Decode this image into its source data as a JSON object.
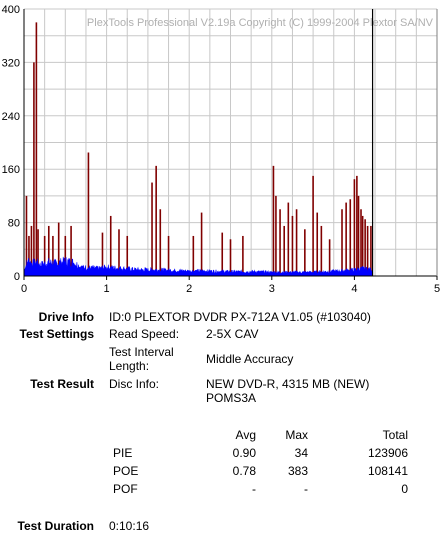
{
  "chart_data": {
    "type": "bar",
    "title": "PlexTools Professional V2.19a Copyright (C) 1999-2004 Plextor SA/NV",
    "xlim": [
      0,
      5
    ],
    "ylim": [
      0,
      400
    ],
    "x_ticks": [
      "0",
      "1",
      "2",
      "3",
      "4",
      "5"
    ],
    "y_ticks": [
      "0",
      "80",
      "160",
      "240",
      "320",
      "400"
    ],
    "grid": true,
    "colors": {
      "pie": "#0000ff",
      "poe": "#800000",
      "marker": "#000000"
    },
    "end_marker_x": 4.22,
    "series": [
      {
        "name": "PIE",
        "color": "#0000ff",
        "profile": [
          [
            0.0,
            10
          ],
          [
            0.05,
            25
          ],
          [
            0.1,
            20
          ],
          [
            0.15,
            22
          ],
          [
            0.2,
            18
          ],
          [
            0.3,
            22
          ],
          [
            0.4,
            20
          ],
          [
            0.5,
            24
          ],
          [
            0.6,
            22
          ],
          [
            0.7,
            14
          ],
          [
            0.9,
            12
          ],
          [
            1.0,
            14
          ],
          [
            1.2,
            12
          ],
          [
            1.4,
            10
          ],
          [
            1.6,
            10
          ],
          [
            1.8,
            9
          ],
          [
            2.0,
            8
          ],
          [
            2.2,
            8
          ],
          [
            2.5,
            7
          ],
          [
            2.8,
            7
          ],
          [
            3.0,
            6
          ],
          [
            3.2,
            6
          ],
          [
            3.5,
            6
          ],
          [
            3.8,
            8
          ],
          [
            4.0,
            10
          ],
          [
            4.1,
            12
          ],
          [
            4.22,
            10
          ]
        ]
      },
      {
        "name": "POE",
        "color": "#800000",
        "spikes": [
          [
            0.03,
            120
          ],
          [
            0.06,
            60
          ],
          [
            0.09,
            75
          ],
          [
            0.12,
            320
          ],
          [
            0.15,
            380
          ],
          [
            0.17,
            70
          ],
          [
            0.25,
            60
          ],
          [
            0.3,
            75
          ],
          [
            0.35,
            60
          ],
          [
            0.42,
            80
          ],
          [
            0.5,
            60
          ],
          [
            0.57,
            75
          ],
          [
            0.78,
            185
          ],
          [
            0.95,
            65
          ],
          [
            1.05,
            90
          ],
          [
            1.15,
            70
          ],
          [
            1.25,
            60
          ],
          [
            1.55,
            140
          ],
          [
            1.6,
            165
          ],
          [
            1.65,
            100
          ],
          [
            1.75,
            60
          ],
          [
            2.05,
            60
          ],
          [
            2.15,
            95
          ],
          [
            2.4,
            65
          ],
          [
            2.5,
            55
          ],
          [
            2.65,
            60
          ],
          [
            3.02,
            165
          ],
          [
            3.05,
            120
          ],
          [
            3.1,
            100
          ],
          [
            3.15,
            75
          ],
          [
            3.2,
            110
          ],
          [
            3.25,
            90
          ],
          [
            3.3,
            100
          ],
          [
            3.4,
            70
          ],
          [
            3.5,
            150
          ],
          [
            3.55,
            95
          ],
          [
            3.6,
            75
          ],
          [
            3.7,
            55
          ],
          [
            3.85,
            100
          ],
          [
            3.9,
            110
          ],
          [
            3.95,
            115
          ],
          [
            4.0,
            145
          ],
          [
            4.03,
            150
          ],
          [
            4.05,
            120
          ],
          [
            4.08,
            100
          ],
          [
            4.1,
            90
          ],
          [
            4.13,
            85
          ],
          [
            4.16,
            75
          ],
          [
            4.2,
            75
          ]
        ]
      }
    ]
  },
  "info": {
    "drive_info_label": "Drive Info",
    "drive_info_value": "ID:0 PLEXTOR DVDR PX-712A V1.05 (#103040)",
    "test_settings_label": "Test Settings",
    "read_speed_key": "Read Speed:",
    "read_speed_value": "2-5X CAV",
    "interval_key_line1": "Test Interval",
    "interval_key_line2": "Length:",
    "interval_value": "Middle Accuracy",
    "test_result_label": "Test Result",
    "disc_info_key": "Disc Info:",
    "disc_info_line1": "NEW DVD-R, 4315 MB (NEW)",
    "disc_info_line2": "POMS3A"
  },
  "results": {
    "headers": {
      "avg": "Avg",
      "max": "Max",
      "total": "Total"
    },
    "rows": [
      {
        "name": "PIE",
        "avg": "0.90",
        "max": "34",
        "total": "123906"
      },
      {
        "name": "POE",
        "avg": "0.78",
        "max": "383",
        "total": "108141"
      },
      {
        "name": "POF",
        "avg": "-",
        "max": "-",
        "total": "0"
      }
    ]
  },
  "duration": {
    "label": "Test Duration",
    "value": "0:10:16"
  }
}
